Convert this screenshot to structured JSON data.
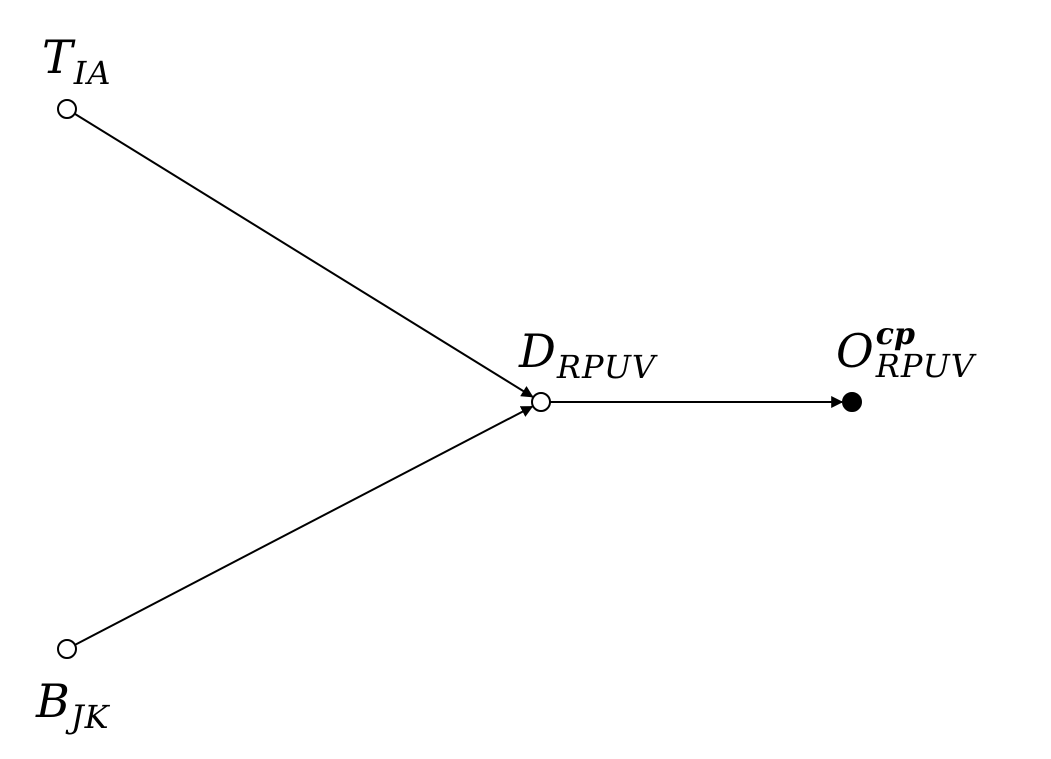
{
  "nodes": [
    {
      "id": "t",
      "label": "T",
      "sub": "IA",
      "filled": false
    },
    {
      "id": "b",
      "label": "B",
      "sub": "JK",
      "filled": false
    },
    {
      "id": "d",
      "label": "D",
      "sub": "RPUV",
      "filled": false
    },
    {
      "id": "o",
      "label": "O",
      "sub": "RPUV",
      "sup": "cp",
      "filled": true
    }
  ],
  "edges": [
    {
      "from": "t",
      "to": "d"
    },
    {
      "from": "b",
      "to": "d"
    },
    {
      "from": "d",
      "to": "o"
    }
  ]
}
